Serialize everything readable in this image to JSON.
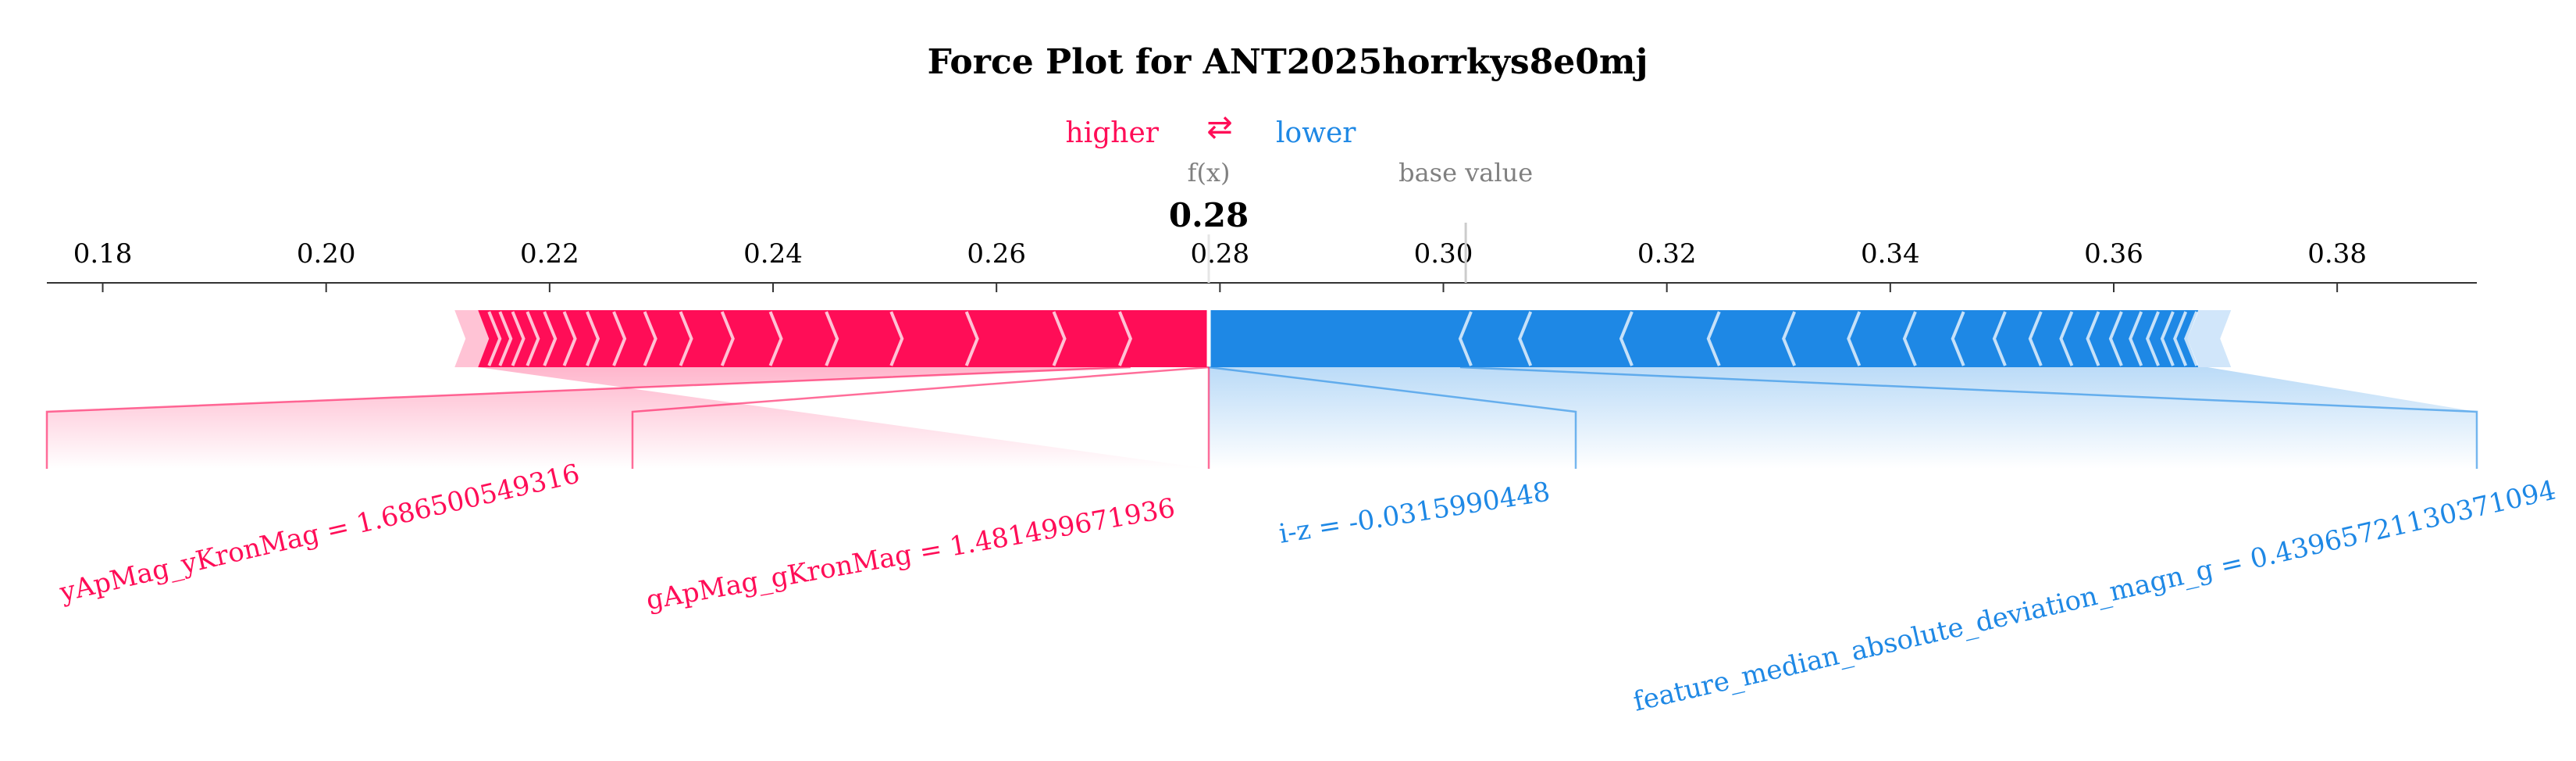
{
  "chart_data": {
    "type": "force",
    "title": "Force Plot for ANT2025horrkys8e0mj",
    "legend": {
      "higher_label": "higher",
      "lower_label": "lower",
      "arrows_glyph": "⇄"
    },
    "fx_label": "f(x)",
    "fx_value": 0.279,
    "fx_value_text": "0.28",
    "base_value_label": "base value",
    "base_value": 0.302,
    "xlim": [
      0.175,
      0.3925
    ],
    "ticks": [
      0.18,
      0.2,
      0.22,
      0.24,
      0.26,
      0.28,
      0.3,
      0.32,
      0.34,
      0.36,
      0.38
    ],
    "tick_labels": [
      "0.18",
      "0.20",
      "0.22",
      "0.24",
      "0.26",
      "0.28",
      "0.30",
      "0.32",
      "0.34",
      "0.36",
      "0.38"
    ],
    "positive_range": [
      0.2115,
      0.279
    ],
    "negative_range": [
      0.279,
      0.3705
    ],
    "labeled_features": [
      {
        "label": "yApMag_yKronMag = 1.686500549316",
        "side": "positive",
        "segment": [
          0.2115,
          0.272
        ]
      },
      {
        "label": "gApMag_gKronMag = 1.481499671936",
        "side": "positive",
        "segment": [
          0.272,
          0.279
        ]
      },
      {
        "label": "i-z = -0.0315990448",
        "side": "negative",
        "segment": [
          0.279,
          0.3015
        ]
      },
      {
        "label": "feature_median_absolute_deviation_magn_g = 0.43965721130371094",
        "side": "negative",
        "segment": [
          0.3015,
          0.3705
        ]
      }
    ],
    "colors": {
      "positive": "#ff0d57",
      "negative": "#1e88e5",
      "positive_light": "#ffc3d5",
      "negative_light": "#d1e6fa",
      "axis": "#333333",
      "base_value_text": "#808080"
    }
  }
}
